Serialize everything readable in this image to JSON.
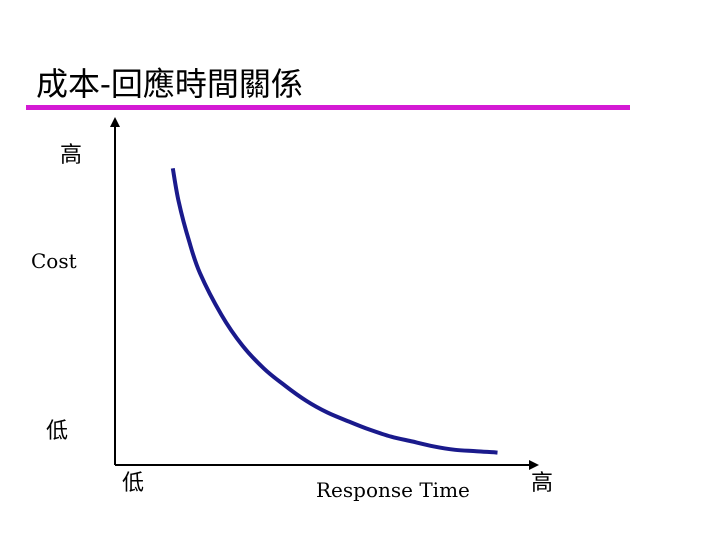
{
  "slide": {
    "title": "成本-回應時間關係",
    "rule_color": "#d41ad4"
  },
  "chart_data": {
    "type": "line",
    "title": "",
    "xlabel": "Response Time",
    "ylabel": "Cost",
    "x_low_label": "低",
    "x_high_label": "高",
    "y_low_label": "低",
    "y_high_label": "高",
    "xlim": [
      0,
      10
    ],
    "ylim": [
      0,
      10
    ],
    "grid": false,
    "legend": "none",
    "axis_color": "#000000",
    "series": [
      {
        "color": "#1a1a8c",
        "x": [
          1.36,
          1.5,
          1.75,
          2.0,
          2.5,
          3.0,
          3.5,
          4.0,
          4.5,
          5.0,
          5.5,
          6.0,
          6.5,
          7.0,
          7.5,
          8.0,
          8.5,
          9.0
        ],
        "y": [
          8.6,
          7.62,
          6.46,
          5.56,
          4.36,
          3.46,
          2.8,
          2.3,
          1.86,
          1.52,
          1.26,
          1.02,
          0.82,
          0.68,
          0.54,
          0.44,
          0.4,
          0.36
        ]
      }
    ]
  }
}
